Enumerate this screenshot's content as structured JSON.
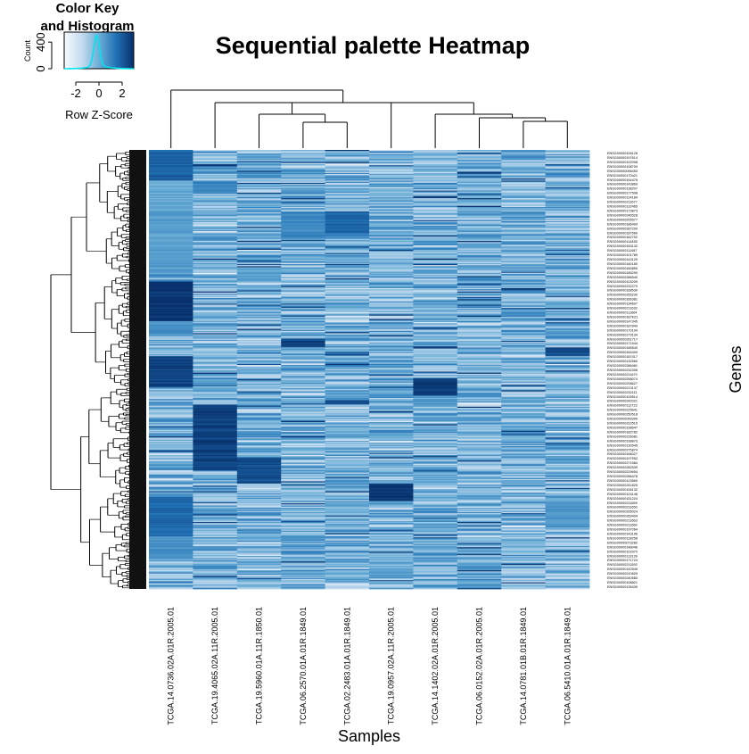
{
  "chart_data": {
    "type": "heatmap",
    "title": "Sequential palette Heatmap",
    "xlabel": "Samples",
    "ylabel": "Genes",
    "columns": [
      "TCGA.14.0736.02A.01R.2005.01",
      "TCGA.19.4065.02A.11R.2005.01",
      "TCGA.19.5960.01A.11R.1850.01",
      "TCGA.06.2570.01A.01R.1849.01",
      "TCGA.02.2483.01A.01R.1849.01",
      "TCGA.19.0957.02A.11R.2005.01",
      "TCGA.14.1402.02A.01R.2005.01",
      "TCGA.06.0152.02A.01R.2005.01",
      "TCGA.14.0781.01B.01R.1849.01",
      "TCGA.06.5410.01A.01R.1849.01"
    ],
    "row_labels": [
      "ENSG00000106128",
      "ENSG00000197614",
      "ENSG00000102098",
      "ENSG00000108700",
      "ENSG00000096453",
      "ENSG00000170421",
      "ENSG00000154478",
      "ENSG00000143869",
      "ENSG00000138207",
      "ENSG00000177508",
      "ENSG00000124184",
      "ENSG00000211677",
      "ENSG00000132465",
      "ENSG00000179873",
      "ENSG00000246528",
      "ENSG00000205577",
      "ENSG00000186493",
      "ENSG00000287200",
      "ENSG00000187560",
      "ENSG00000162792",
      "ENSG00000114455",
      "ENSG00000153132",
      "ENSG00000111087",
      "ENSG00000101789",
      "ENSG00000143125",
      "ENSG00000160180",
      "ENSG00000160850",
      "ENSG00000185290",
      "ENSG00000286540",
      "ENSG00000103209",
      "ENSG00000232270",
      "ENSG00000168530",
      "ENSG00000255230",
      "ENSG00000166381",
      "ENSG00000134607",
      "ENSG00000211632",
      "ENSG00000111664",
      "ENSG00000187K21",
      "ENSG00000147345",
      "ENSG00000187849",
      "ENSG00000170104",
      "ENSG00000279134",
      "ENSG00000261717",
      "ENSG00000171944",
      "ENSG00000185540",
      "ENSG00000164400",
      "ENSG00000187417",
      "ENSG00000132560",
      "ENSG00000286481",
      "ENSG00000232306",
      "ENSG00000211670",
      "ENSG00000258074",
      "ENSG00000208627",
      "ENSG00000213137",
      "ENSG00000232111",
      "ENSG00000109514",
      "ENSG00000242021",
      "ENSG00000112722",
      "ENSG00000225641",
      "ENSG00000250518",
      "ENSG00000099399",
      "ENSG00000222515",
      "ENSG00000198647",
      "ENSG00000182782",
      "ENSG00000226081",
      "ENSG00000198873",
      "ENSG00000130545",
      "ENSG00000275874",
      "ENSG00000166027",
      "ENSG00000197552",
      "ENSG00000271584",
      "ENSG00000282539",
      "ENSG00000229654",
      "ENSG00000286478",
      "ENSG00000123560",
      "ENSG00000241825",
      "ENSG00000106132",
      "ENSG00000124146",
      "ENSG00000151224",
      "ENSG00000211659",
      "ENSG00000211650",
      "ENSG00000205024",
      "ENSG00000269404",
      "ENSG00000211663",
      "ENSG00000211660",
      "ENSG00000197064",
      "ENSG00000143196",
      "ENSG00000128258",
      "ENSG00000073282",
      "ENSG00000148046",
      "ENSG00000102970",
      "ENSG00000113139",
      "ENSG00000171724",
      "ENSG00000211592",
      "ENSG00000142549",
      "ENSG00000210825",
      "ENSG00000240583",
      "ENSG00000108821",
      "ENSG00000135439"
    ],
    "n_rows": 400,
    "colorscale": [
      "#f7fbff",
      "#c6dbef",
      "#6baed6",
      "#2171b5",
      "#08306b"
    ],
    "color_key": {
      "title_line1": "Color Key",
      "title_line2": "and Histogram",
      "ylabel": "Count",
      "xlabel": "Row Z-Score",
      "x_ticks": [
        "-2",
        "0",
        "2"
      ],
      "x_tick_values": [
        -2,
        0,
        2
      ],
      "xlim": [
        -3,
        3
      ],
      "y_ticks": [
        "0",
        "400"
      ],
      "y_tick_values": [
        0,
        400
      ],
      "ylim": [
        0,
        550
      ],
      "histogram_color": "#00e5ee"
    },
    "dendrogram_rows": true,
    "dendrogram_columns": true
  }
}
